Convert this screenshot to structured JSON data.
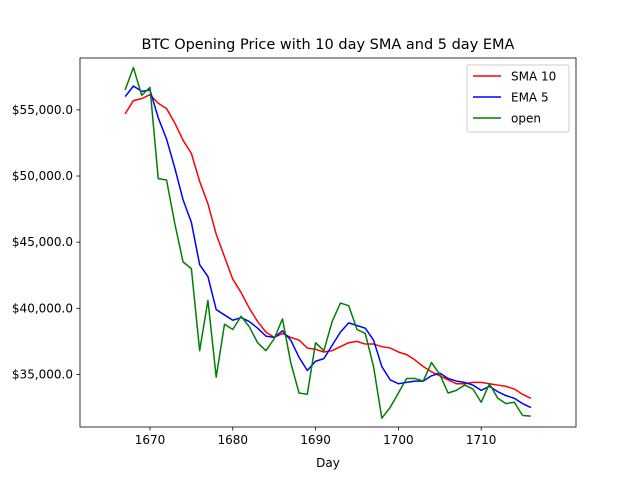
{
  "chart_data": {
    "type": "line",
    "title": "BTC Opening Price with 10 day SMA and 5 day EMA",
    "xlabel": "Day",
    "ylabel": "",
    "xlim": [
      1661.55,
      1721.45
    ],
    "ylim": [
      31030,
      58920
    ],
    "x_ticks": [
      1670,
      1680,
      1690,
      1700,
      1710
    ],
    "x_tick_labels": [
      "1670",
      "1680",
      "1690",
      "1700",
      "1710"
    ],
    "y_ticks": [
      35000,
      40000,
      45000,
      50000,
      55000
    ],
    "y_tick_labels": [
      "$35,000.0",
      "$40,000.0",
      "$45,000.0",
      "$50,000.0",
      "$55,000.0"
    ],
    "grid": false,
    "legend_position": "top-right",
    "x": [
      1667,
      1668,
      1669,
      1670,
      1671,
      1672,
      1673,
      1674,
      1675,
      1676,
      1677,
      1678,
      1679,
      1680,
      1681,
      1682,
      1683,
      1684,
      1685,
      1686,
      1687,
      1688,
      1689,
      1690,
      1691,
      1692,
      1693,
      1694,
      1695,
      1696,
      1697,
      1698,
      1699,
      1700,
      1701,
      1702,
      1703,
      1704,
      1705,
      1706,
      1707,
      1708,
      1709,
      1710,
      1711,
      1712,
      1713,
      1714,
      1715,
      1716
    ],
    "series": [
      {
        "name": "SMA 10",
        "color": "#ff0000",
        "values": [
          54700,
          55700,
          55850,
          56150,
          55500,
          55100,
          54000,
          52700,
          51700,
          49600,
          47900,
          45600,
          43900,
          42200,
          41200,
          40000,
          39000,
          38200,
          37800,
          38100,
          37800,
          37600,
          37000,
          36900,
          36700,
          36800,
          37100,
          37400,
          37500,
          37300,
          37300,
          37100,
          37000,
          36700,
          36500,
          36100,
          35600,
          35200,
          34900,
          34600,
          34300,
          34300,
          34400,
          34400,
          34300,
          34200,
          34100,
          33900,
          33500,
          33200
        ]
      },
      {
        "name": "EMA 5",
        "color": "#0000ff",
        "values": [
          56000,
          56800,
          56400,
          56500,
          54400,
          52800,
          50600,
          48200,
          46500,
          43300,
          42400,
          39900,
          39500,
          39100,
          39300,
          39000,
          38500,
          37900,
          37800,
          38300,
          37600,
          36300,
          35300,
          36000,
          36200,
          37200,
          38200,
          38900,
          38700,
          38500,
          37600,
          35600,
          34600,
          34300,
          34400,
          34500,
          34500,
          34900,
          35100,
          34700,
          34500,
          34400,
          34200,
          33800,
          34100,
          33700,
          33400,
          33200,
          32800,
          32500
        ]
      },
      {
        "name": "open",
        "color": "#008000",
        "values": [
          56500,
          58200,
          56100,
          56700,
          49800,
          49700,
          46400,
          43500,
          43000,
          36800,
          40600,
          34800,
          38800,
          38400,
          39400,
          38600,
          37400,
          36800,
          37700,
          39200,
          35900,
          33600,
          33500,
          37400,
          36800,
          39000,
          40400,
          40200,
          38400,
          38100,
          35600,
          31700,
          32500,
          33600,
          34700,
          34700,
          34500,
          35900,
          35000,
          33600,
          33800,
          34200,
          33900,
          32900,
          34300,
          33200,
          32800,
          32900,
          31900,
          31850
        ]
      }
    ]
  }
}
